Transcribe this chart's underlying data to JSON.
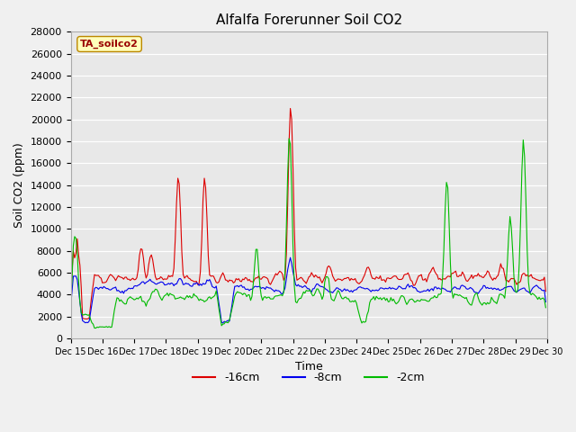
{
  "title": "Alfalfa Forerunner Soil CO2",
  "xlabel": "Time",
  "ylabel": "Soil CO2 (ppm)",
  "annotation": "TA_soilco2",
  "ylim": [
    0,
    28000
  ],
  "legend_labels": [
    "-16cm",
    "-8cm",
    "-2cm"
  ],
  "legend_colors": [
    "#dd0000",
    "#0000ee",
    "#00bb00"
  ],
  "line_colors": [
    "#dd0000",
    "#0000ee",
    "#00bb00"
  ],
  "axes_bg_color": "#e8e8e8",
  "fig_bg_color": "#f0f0f0",
  "x_tick_labels": [
    "Dec 15",
    "Dec 16",
    "Dec 17",
    "Dec 18",
    "Dec 19",
    "Dec 20",
    "Dec 21",
    "Dec 22",
    "Dec 23",
    "Dec 24",
    "Dec 25",
    "Dec 26",
    "Dec 27",
    "Dec 28",
    "Dec 29",
    "Dec 30"
  ],
  "n_points": 360
}
